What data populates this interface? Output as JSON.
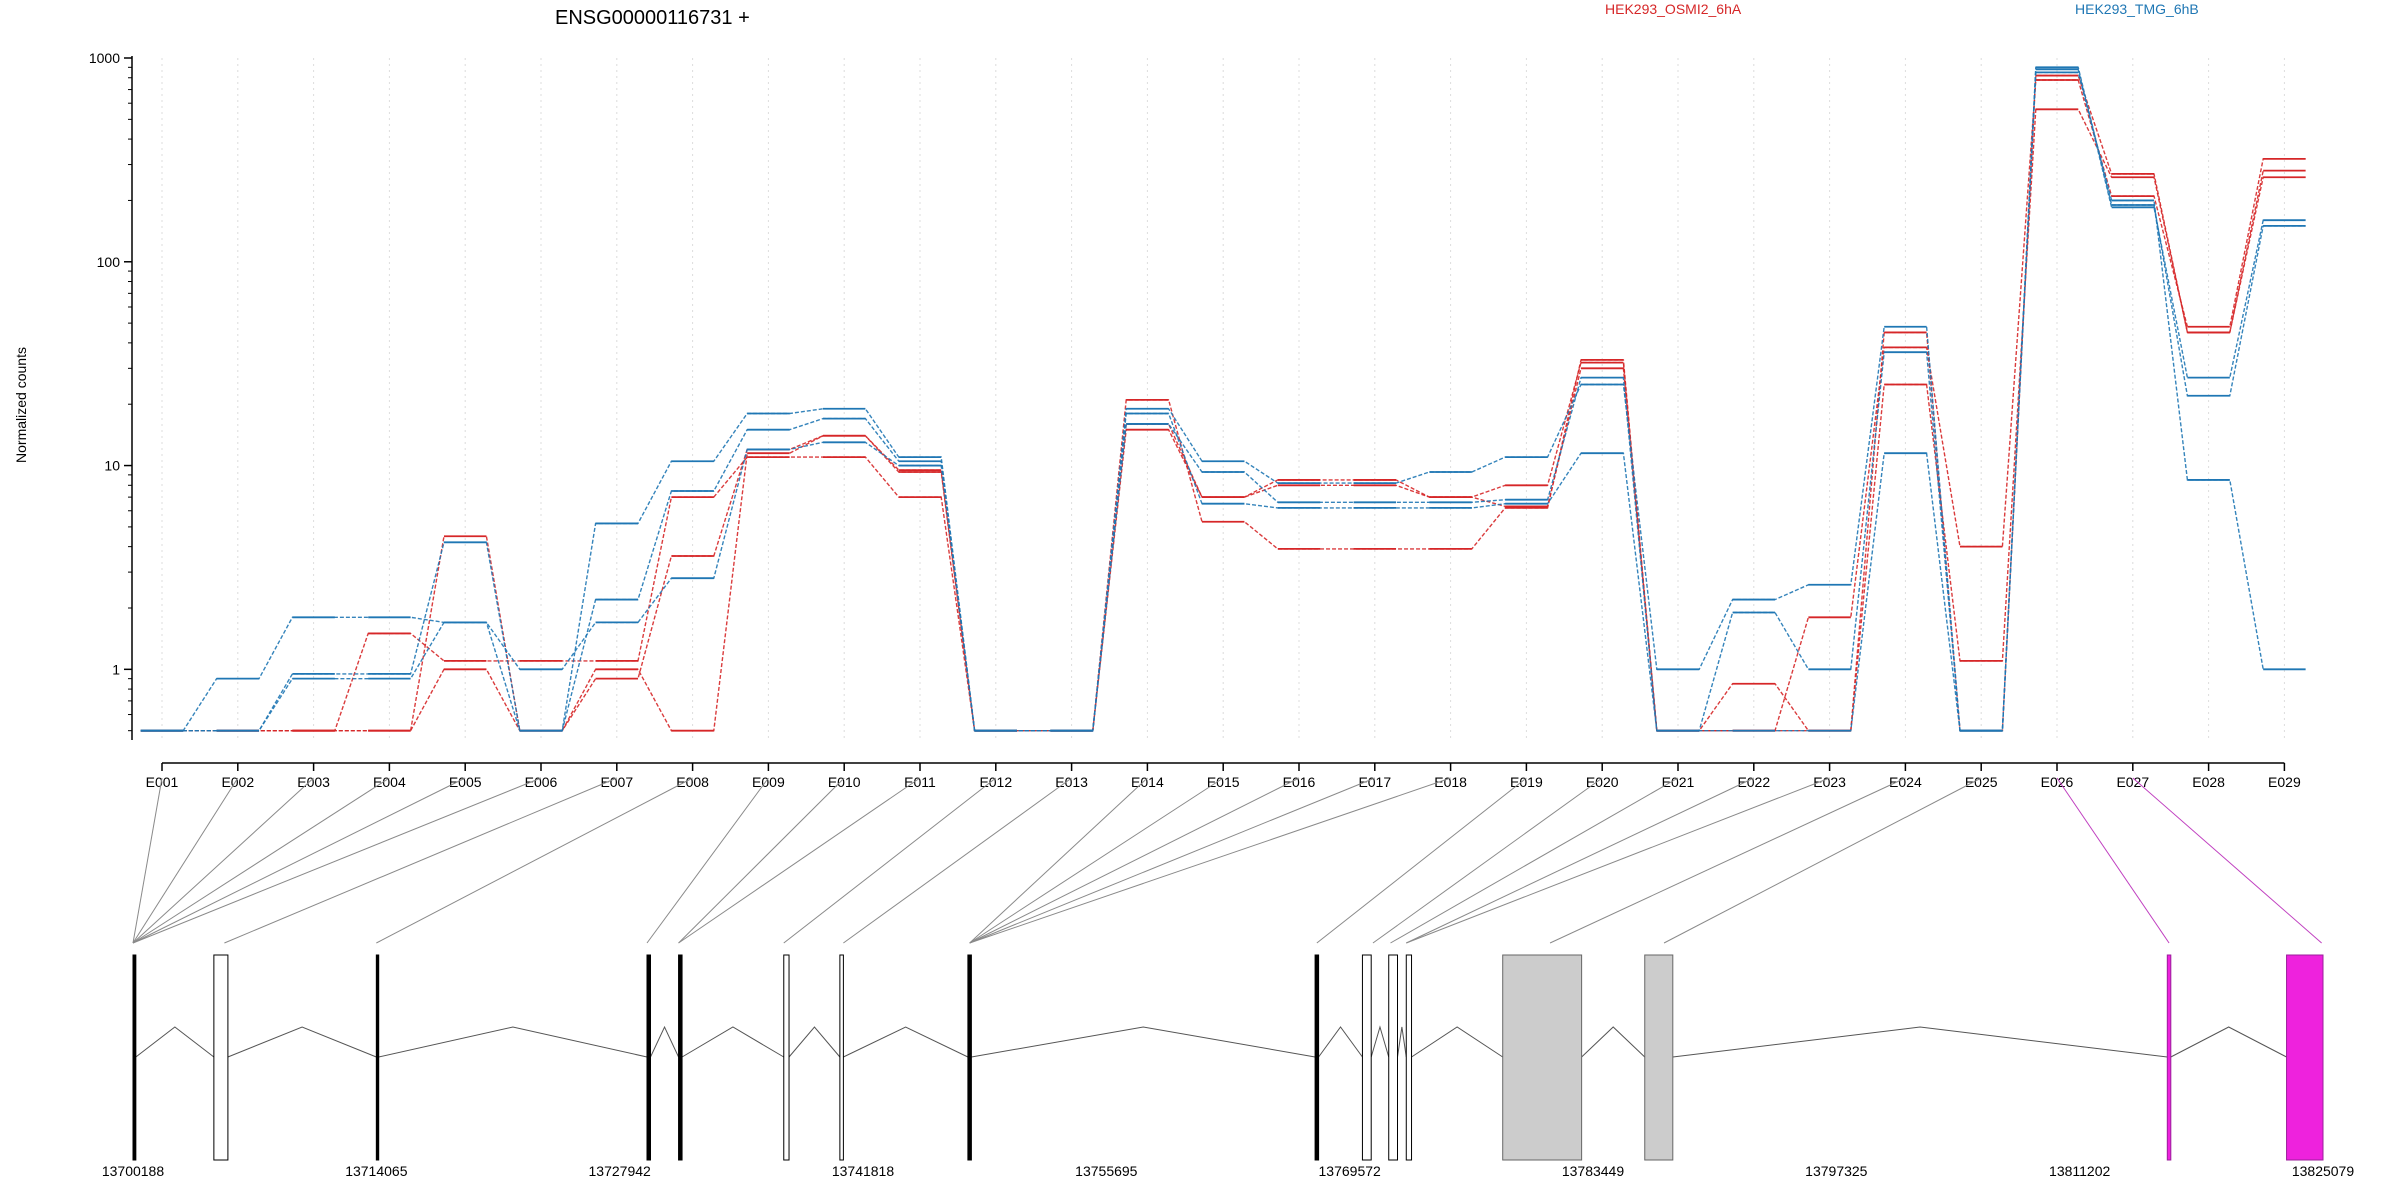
{
  "chart_data": {
    "type": "line",
    "title": "ENSG00000116731 +",
    "ylabel": "Normalized counts",
    "yscale": "log",
    "ylim": [
      0.5,
      1000
    ],
    "y_ticks": [
      1,
      10,
      100,
      1000
    ],
    "y_tick_labels": [
      "1",
      "10",
      "100",
      "1000"
    ],
    "grid": "vertical dotted",
    "legend": [
      {
        "name": "HEK293_OSMI2_6hA",
        "color": "#d62728"
      },
      {
        "name": "HEK293_TMG_6hB",
        "color": "#1f77b4"
      }
    ],
    "categories": [
      "E001",
      "E002",
      "E003",
      "E004",
      "E005",
      "E006",
      "E007",
      "E008",
      "E009",
      "E010",
      "E011",
      "E012",
      "E013",
      "E014",
      "E015",
      "E016",
      "E017",
      "E018",
      "E019",
      "E020",
      "E021",
      "E022",
      "E023",
      "E024",
      "E025",
      "E026",
      "E027",
      "E028",
      "E029"
    ],
    "series": [
      {
        "group": "HEK293_OSMI2_6hA",
        "color": "#d62728",
        "values": [
          0.5,
          0.5,
          0.5,
          0.5,
          1.0,
          0.5,
          0.9,
          3.6,
          12,
          14,
          9.5,
          0.5,
          0.5,
          16,
          7,
          8.5,
          8.5,
          7,
          8,
          32,
          0.5,
          0.5,
          1.8,
          38,
          4,
          780,
          210,
          48,
          320
        ]
      },
      {
        "group": "HEK293_OSMI2_6hA",
        "color": "#d62728",
        "values": [
          0.5,
          0.5,
          0.5,
          1.5,
          1.1,
          1.1,
          1.1,
          7.0,
          11,
          11,
          7,
          0.5,
          0.5,
          21,
          5.3,
          3.9,
          3.9,
          3.9,
          6.2,
          33,
          0.5,
          0.85,
          0.5,
          25,
          1.1,
          560,
          260,
          45,
          260
        ]
      },
      {
        "group": "HEK293_OSMI2_6hA",
        "color": "#d62728",
        "values": [
          0.5,
          0.5,
          0.5,
          0.5,
          4.5,
          0.5,
          1.0,
          0.5,
          11.5,
          14,
          9.3,
          0.5,
          0.5,
          15,
          7,
          8,
          8,
          7,
          6.3,
          30,
          0.5,
          0.5,
          0.5,
          45,
          0.5,
          820,
          270,
          45,
          280
        ]
      },
      {
        "group": "HEK293_TMG_6hB",
        "color": "#1f77b4",
        "values": [
          0.5,
          0.9,
          1.8,
          1.8,
          1.7,
          0.5,
          5.2,
          10.5,
          18,
          19,
          11,
          0.5,
          0.5,
          19,
          10.5,
          8.2,
          8.2,
          9.3,
          11,
          25,
          1.0,
          2.2,
          2.6,
          48,
          0.5,
          900,
          190,
          22,
          150
        ]
      },
      {
        "group": "HEK293_TMG_6hB",
        "color": "#1f77b4",
        "values": [
          0.5,
          0.5,
          0.95,
          0.95,
          4.2,
          0.5,
          2.2,
          7.5,
          15,
          17,
          10.5,
          0.5,
          0.5,
          16,
          9.3,
          6.6,
          6.6,
          6.6,
          6.8,
          27,
          0.5,
          1.9,
          1.0,
          36,
          0.5,
          880,
          185,
          27,
          160
        ]
      },
      {
        "group": "HEK293_TMG_6hB",
        "color": "#1f77b4",
        "values": [
          0.5,
          0.5,
          0.9,
          0.9,
          1.7,
          1.0,
          1.7,
          2.8,
          12,
          13,
          10,
          0.5,
          0.5,
          18,
          6.5,
          6.2,
          6.2,
          6.2,
          6.5,
          11.5,
          0.5,
          0.5,
          0.5,
          11.5,
          0.5,
          850,
          200,
          8.5,
          1.0
        ]
      }
    ],
    "gene_model": {
      "coord_ticks": [
        "13700188",
        "13714065",
        "13727942",
        "13741818",
        "13755695",
        "13769572",
        "13783449",
        "13797325",
        "13811202",
        "13825079"
      ],
      "coord_range": [
        13700188,
        13825079
      ],
      "exons": [
        {
          "start": 13700188,
          "end": 13700350,
          "style": "thin"
        },
        {
          "start": 13704800,
          "end": 13705600,
          "style": "white"
        },
        {
          "start": 13714065,
          "end": 13714200,
          "style": "thin"
        },
        {
          "start": 13729500,
          "end": 13729700,
          "style": "thin"
        },
        {
          "start": 13731300,
          "end": 13731500,
          "style": "thin"
        },
        {
          "start": 13737300,
          "end": 13737600,
          "style": "white"
        },
        {
          "start": 13740500,
          "end": 13740700,
          "style": "white"
        },
        {
          "start": 13747800,
          "end": 13748000,
          "style": "thin"
        },
        {
          "start": 13767600,
          "end": 13767800,
          "style": "thin"
        },
        {
          "start": 13770300,
          "end": 13770800,
          "style": "white"
        },
        {
          "start": 13771800,
          "end": 13772300,
          "style": "white"
        },
        {
          "start": 13772800,
          "end": 13773100,
          "style": "white"
        },
        {
          "start": 13778300,
          "end": 13782800,
          "style": "gray"
        },
        {
          "start": 13786400,
          "end": 13788000,
          "style": "gray"
        },
        {
          "start": 13816200,
          "end": 13816400,
          "style": "magenta"
        },
        {
          "start": 13823000,
          "end": 13825079,
          "style": "magenta"
        }
      ],
      "intron_peaks": [
        {
          "from": 13700350,
          "to": 13704800
        },
        {
          "from": 13705600,
          "to": 13714065
        },
        {
          "from": 13714200,
          "to": 13729500
        },
        {
          "from": 13729700,
          "to": 13731300
        },
        {
          "from": 13731500,
          "to": 13737300
        },
        {
          "from": 13737600,
          "to": 13740500
        },
        {
          "from": 13740700,
          "to": 13747800
        },
        {
          "from": 13748000,
          "to": 13767600
        },
        {
          "from": 13767800,
          "to": 13770300
        },
        {
          "from": 13770800,
          "to": 13771800
        },
        {
          "from": 13772300,
          "to": 13772800
        },
        {
          "from": 13773100,
          "to": 13778300
        },
        {
          "from": 13782800,
          "to": 13786400
        },
        {
          "from": 13788000,
          "to": 13816200
        },
        {
          "from": 13816400,
          "to": 13823000
        }
      ],
      "bin_links": [
        13700188,
        13700188,
        13700188,
        13700188,
        13700188,
        13700188,
        13705400,
        13714065,
        13729500,
        13731300,
        13731300,
        13737300,
        13740700,
        13747900,
        13747900,
        13747900,
        13747900,
        13747900,
        13767700,
        13770900,
        13771900,
        13772800,
        13772800,
        13781000,
        13787500,
        13816300,
        13825000
      ]
    }
  }
}
